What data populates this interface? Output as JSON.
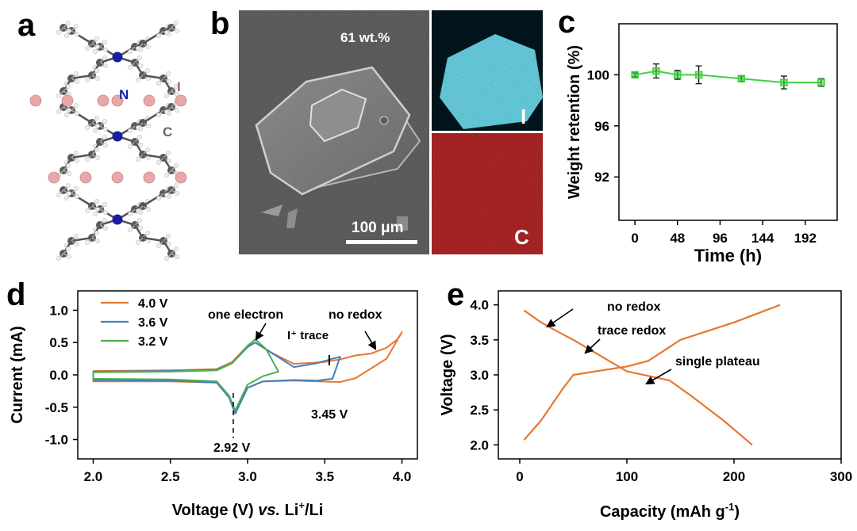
{
  "panels": {
    "a": {
      "letter": "a",
      "labels": {
        "N": "N",
        "I": "I",
        "C": "C"
      },
      "colors": {
        "N": "#1a1aa6",
        "I": "#e8a8a8",
        "C": "#666666"
      }
    },
    "b": {
      "letter": "b",
      "sem_label": "61 wt.%",
      "scale_bar": "100 μm",
      "map_I_label": "I",
      "map_C_label": "C",
      "colors": {
        "map_I": "#27b6d6",
        "map_C": "#c41818"
      }
    },
    "c": {
      "letter": "c"
    },
    "d": {
      "letter": "d"
    },
    "e": {
      "letter": "e"
    }
  },
  "chart_data": [
    {
      "id": "c",
      "type": "line",
      "xlabel": "Time (h)",
      "ylabel": "Weight retention (%)",
      "xlim": [
        -18,
        228
      ],
      "ylim": [
        88.6,
        104
      ],
      "xticks": [
        "0",
        "48",
        "96",
        "144",
        "192"
      ],
      "xtick_values": [
        0,
        48,
        96,
        144,
        192
      ],
      "yticks": [
        "92",
        "96",
        "100"
      ],
      "ytick_values": [
        92,
        96,
        100
      ],
      "series": [
        {
          "color": "#3fd13f",
          "x": [
            0,
            24,
            48,
            72,
            120,
            168,
            210
          ],
          "y": [
            100.0,
            100.3,
            100.0,
            100.0,
            99.7,
            99.4,
            99.4
          ],
          "err": [
            0.15,
            0.55,
            0.35,
            0.7,
            0.2,
            0.5,
            0.3
          ]
        }
      ]
    },
    {
      "id": "d",
      "type": "line",
      "xlabel": "Voltage (V) vs. Li⁺/Li",
      "xlabel_parts": [
        "Voltage (V) ",
        "vs.",
        " Li",
        "+",
        "/Li"
      ],
      "ylabel": "Current (mA)",
      "xlim": [
        1.9,
        4.1
      ],
      "ylim": [
        -1.3,
        1.3
      ],
      "xticks": [
        "2.0",
        "2.5",
        "3.0",
        "3.5",
        "4.0"
      ],
      "xtick_values": [
        2.0,
        2.5,
        3.0,
        3.5,
        4.0
      ],
      "yticks": [
        "-1.0",
        "-0.5",
        "0.0",
        "0.5",
        "1.0"
      ],
      "ytick_values": [
        -1.0,
        -0.5,
        0.0,
        0.5,
        1.0
      ],
      "legend": [
        "4.0 V",
        "3.6 V",
        "3.2 V"
      ],
      "legend_placement": "top-left",
      "series": [
        {
          "name": "4.0 V",
          "color": "#e8772e",
          "x": [
            2.0,
            2.5,
            2.8,
            2.9,
            3.0,
            3.05,
            3.15,
            3.3,
            3.5,
            3.6,
            3.7,
            3.8,
            3.9,
            3.97,
            4.0,
            3.9,
            3.7,
            3.6,
            3.45,
            3.3,
            3.1,
            3.0,
            2.95,
            2.92,
            2.88,
            2.8,
            2.5,
            2.0,
            2.0
          ],
          "y": [
            0.06,
            0.07,
            0.09,
            0.2,
            0.45,
            0.5,
            0.35,
            0.17,
            0.2,
            0.24,
            0.3,
            0.33,
            0.42,
            0.55,
            0.66,
            0.25,
            -0.05,
            -0.11,
            -0.1,
            -0.09,
            -0.1,
            -0.2,
            -0.45,
            -0.58,
            -0.35,
            -0.12,
            -0.1,
            -0.1,
            0.06
          ]
        },
        {
          "name": "3.6 V",
          "color": "#3f7fbf",
          "x": [
            2.0,
            2.5,
            2.8,
            2.9,
            3.0,
            3.05,
            3.15,
            3.3,
            3.45,
            3.55,
            3.6,
            3.55,
            3.45,
            3.3,
            3.1,
            3.0,
            2.95,
            2.92,
            2.88,
            2.8,
            2.5,
            2.0,
            2.0
          ],
          "y": [
            0.05,
            0.06,
            0.08,
            0.18,
            0.43,
            0.5,
            0.35,
            0.12,
            0.18,
            0.25,
            0.28,
            -0.06,
            -0.09,
            -0.08,
            -0.1,
            -0.2,
            -0.45,
            -0.6,
            -0.35,
            -0.12,
            -0.09,
            -0.08,
            0.05
          ]
        },
        {
          "name": "3.2 V",
          "color": "#4caf50",
          "x": [
            2.0,
            2.5,
            2.8,
            2.9,
            3.0,
            3.05,
            3.12,
            3.2,
            3.1,
            3.0,
            2.95,
            2.92,
            2.88,
            2.8,
            2.5,
            2.0,
            2.0
          ],
          "y": [
            0.04,
            0.05,
            0.07,
            0.18,
            0.45,
            0.55,
            0.4,
            0.05,
            -0.02,
            -0.15,
            -0.4,
            -0.55,
            -0.32,
            -0.1,
            -0.07,
            -0.06,
            0.04
          ]
        }
      ],
      "annotations": {
        "one_electron": "one electron",
        "no_redox": "no redox",
        "trace": "I⁺ trace",
        "v345": "3.45 V",
        "v292": "2.92 V"
      }
    },
    {
      "id": "e",
      "type": "line",
      "xlabel": "Capacity (mAh g⁻¹)",
      "xlabel_parts": [
        "Capacity (mAh g",
        "-1",
        ")"
      ],
      "ylabel": "Voltage (V)",
      "xlim": [
        -20,
        300
      ],
      "ylim": [
        1.8,
        4.2
      ],
      "xticks": [
        "0",
        "100",
        "200",
        "300"
      ],
      "xtick_values": [
        0,
        100,
        200,
        300
      ],
      "yticks": [
        "2.0",
        "2.5",
        "3.0",
        "3.5",
        "4.0"
      ],
      "ytick_values": [
        2.0,
        2.5,
        3.0,
        3.5,
        4.0
      ],
      "series": [
        {
          "color": "#e8772e",
          "x": [
            4,
            20,
            35,
            50,
            100,
            140,
            160,
            190,
            217
          ],
          "y": [
            3.92,
            3.75,
            3.62,
            3.5,
            3.05,
            2.92,
            2.7,
            2.35,
            2.0
          ]
        },
        {
          "color": "#e8772e",
          "x": [
            4,
            20,
            40,
            50,
            100,
            120,
            150,
            200,
            243
          ],
          "y": [
            2.07,
            2.35,
            2.8,
            3.0,
            3.12,
            3.2,
            3.5,
            3.75,
            4.0
          ]
        }
      ],
      "annotations": {
        "no_redox": "no redox",
        "trace_redox": "trace redox",
        "single_plateau": "single plateau"
      }
    }
  ]
}
